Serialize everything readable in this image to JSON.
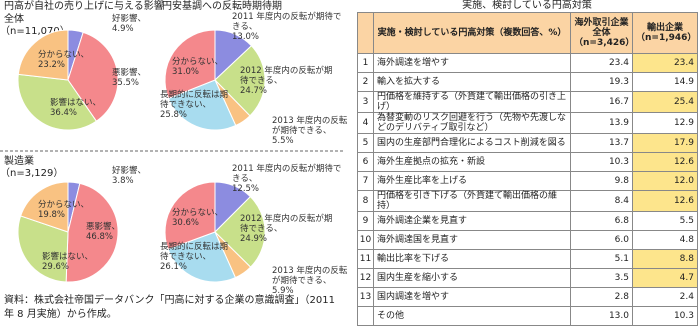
{
  "panels": {
    "columns": [
      "円高が自社の売り上げに与える影響",
      "円安基調への反転時期待期"
    ],
    "groups": [
      {
        "name": "全体",
        "n": "（n=11,070）"
      },
      {
        "name": "製造業",
        "n": "（n=3,129）"
      }
    ]
  },
  "chart_data": [
    {
      "type": "pie",
      "labels": [
        "好影響、",
        "悪影響、",
        "影響はない、",
        "分からない、"
      ],
      "values": [
        4.9,
        35.5,
        36.4,
        23.2
      ],
      "value_labels": [
        "4.9%",
        "35.5%",
        "36.4%",
        "23.2%"
      ],
      "colors": [
        "#8c8ce0",
        "#f4888c",
        "#c8e08a",
        "#f9c282"
      ]
    },
    {
      "type": "pie",
      "labels": [
        "2011 年度内の反転が期待できる、",
        "2012 年度内の反転が期待できる、",
        "2013 年度内の反転が期待できる、",
        "長期的に反転は期待できない、",
        "分からない、"
      ],
      "values": [
        13.0,
        24.7,
        5.5,
        25.8,
        31.0
      ],
      "value_labels": [
        "13.0%",
        "24.7%",
        "5.5%",
        "25.8%",
        "31.0%"
      ],
      "colors": [
        "#8c8ce0",
        "#c8e08a",
        "#f9c282",
        "#a8dcef",
        "#f4888c"
      ]
    },
    {
      "type": "pie",
      "labels": [
        "好影響、",
        "悪影響、",
        "影響はない、",
        "分からない、"
      ],
      "values": [
        3.8,
        46.8,
        29.6,
        19.8
      ],
      "value_labels": [
        "3.8%",
        "46.8%",
        "29.6%",
        "19.8%"
      ],
      "colors": [
        "#8c8ce0",
        "#f4888c",
        "#c8e08a",
        "#f9c282"
      ]
    },
    {
      "type": "pie",
      "labels": [
        "2011 年度内の反転が期待できる、",
        "2012 年度内の反転が期待できる、",
        "2013 年度内の反転が期待できる、",
        "長期的に反転は期待できない、",
        "分からない、"
      ],
      "values": [
        12.5,
        24.9,
        5.9,
        26.1,
        30.6
      ],
      "value_labels": [
        "12.5%",
        "24.9%",
        "5.9%",
        "26.1%",
        "30.6%"
      ],
      "colors": [
        "#8c8ce0",
        "#c8e08a",
        "#f9c282",
        "#a8dcef",
        "#f4888c"
      ]
    }
  ],
  "source": "資料：株式会社帝国データバンク「円高に対する企業の意識調査」（2011 年 8 月実施）から作成。",
  "table": {
    "title": "実施、検討している円高対策",
    "header": [
      "実施・検討している円高対策（複数回答、%）",
      "海外取引企業全体（n=3,426）",
      "輸出企業（n=1,946）"
    ],
    "highlight_color": "#fde58c",
    "rows": [
      [
        "1",
        "海外調達を増やす",
        "23.4",
        "23.4"
      ],
      [
        "2",
        "輸入を拡大する",
        "19.3",
        "14.9"
      ],
      [
        "3",
        "円価格を維持する（外貨建て輸出価格の引き上げ）",
        "16.7",
        "25.4"
      ],
      [
        "4",
        "為替変動のリスク回避を行う（先物や先渡しなどのデリバティブ取引など）",
        "13.9",
        "12.9"
      ],
      [
        "5",
        "国内の生産部門合理化によるコスト削減を図る",
        "13.7",
        "17.9"
      ],
      [
        "6",
        "海外生産拠点の拡充・新設",
        "10.3",
        "12.6"
      ],
      [
        "7",
        "海外生産比率を上げる",
        "9.8",
        "12.0"
      ],
      [
        "8",
        "円価格を引き下げる（外貨建て輸出価格の維持）",
        "8.4",
        "12.6"
      ],
      [
        "9",
        "海外調達企業を見直す",
        "6.8",
        "5.5"
      ],
      [
        "10",
        "海外調達国を見直す",
        "6.0",
        "4.8"
      ],
      [
        "11",
        "輸出比率を下げる",
        "5.1",
        "8.8"
      ],
      [
        "12",
        "国内生産を縮小する",
        "3.5",
        "4.7"
      ],
      [
        "13",
        "国内調達を増やす",
        "2.8",
        "2.4"
      ],
      [
        null,
        "その他",
        "13.0",
        "10.3"
      ]
    ],
    "highlight": [
      true,
      false,
      true,
      false,
      true,
      true,
      true,
      true,
      false,
      false,
      true,
      true,
      false,
      false
    ]
  }
}
